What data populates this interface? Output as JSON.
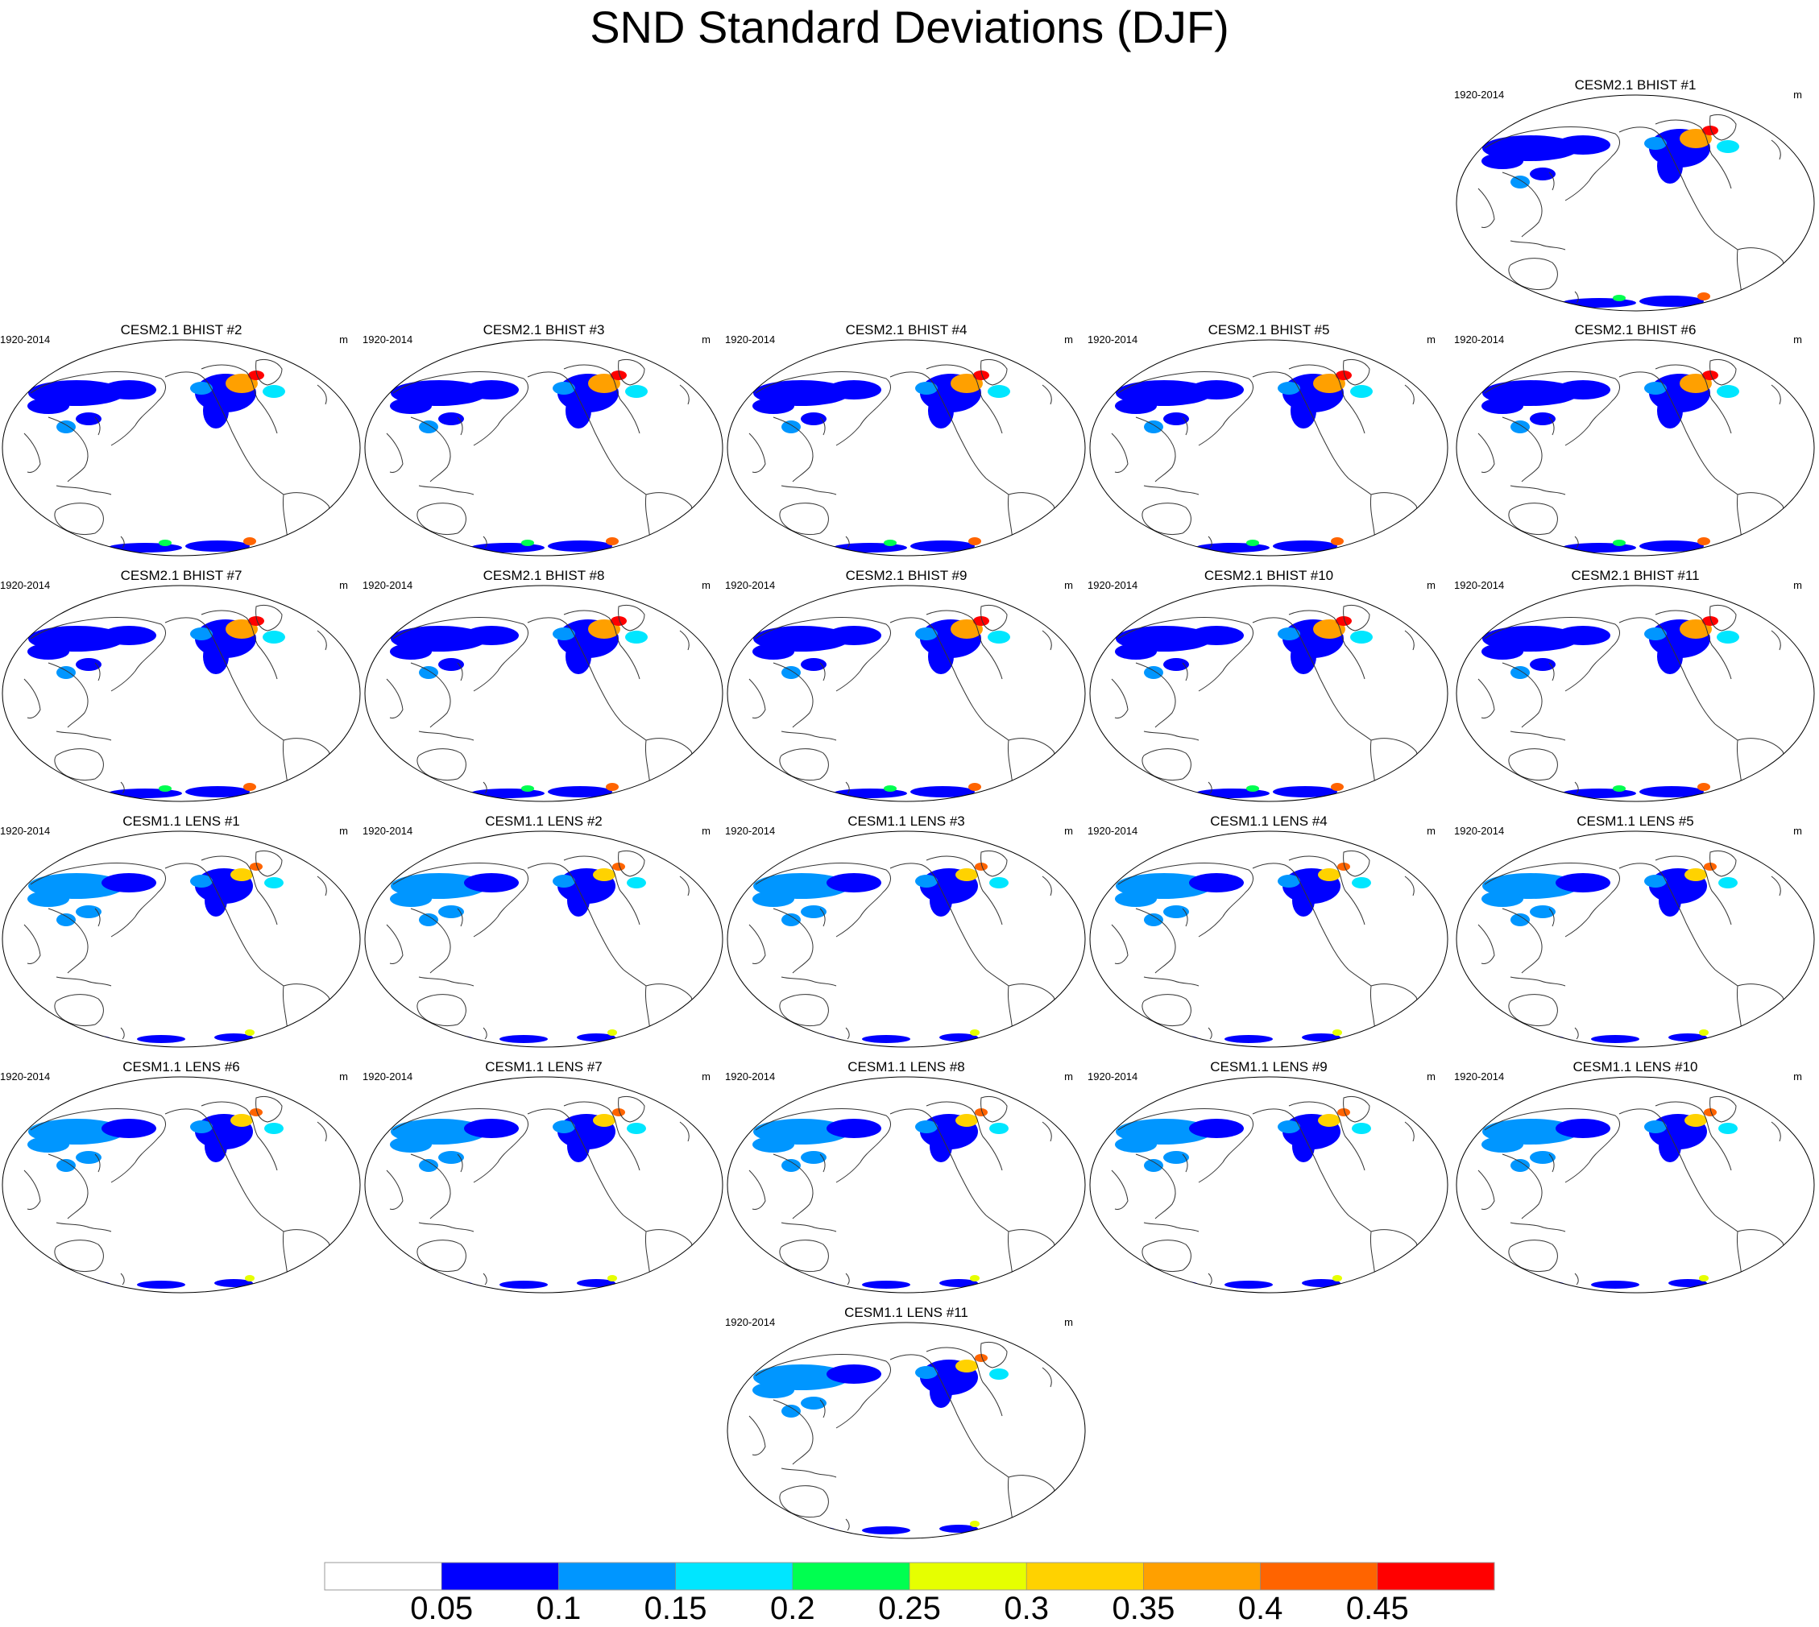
{
  "title": "SND Standard Deviations (DJF)",
  "panels": [
    {
      "title": "CESM2.1 BHIST #1",
      "period": "1920-2014",
      "units": "m",
      "model": "CESM2.1"
    },
    {
      "title": "CESM2.1 BHIST #2",
      "period": "1920-2014",
      "units": "m",
      "model": "CESM2.1"
    },
    {
      "title": "CESM2.1 BHIST #3",
      "period": "1920-2014",
      "units": "m",
      "model": "CESM2.1"
    },
    {
      "title": "CESM2.1 BHIST #4",
      "period": "1920-2014",
      "units": "m",
      "model": "CESM2.1"
    },
    {
      "title": "CESM2.1 BHIST #5",
      "period": "1920-2014",
      "units": "m",
      "model": "CESM2.1"
    },
    {
      "title": "CESM2.1 BHIST #6",
      "period": "1920-2014",
      "units": "m",
      "model": "CESM2.1"
    },
    {
      "title": "CESM2.1 BHIST #7",
      "period": "1920-2014",
      "units": "m",
      "model": "CESM2.1"
    },
    {
      "title": "CESM2.1 BHIST #8",
      "period": "1920-2014",
      "units": "m",
      "model": "CESM2.1"
    },
    {
      "title": "CESM2.1 BHIST #9",
      "period": "1920-2014",
      "units": "m",
      "model": "CESM2.1"
    },
    {
      "title": "CESM2.1 BHIST #10",
      "period": "1920-2014",
      "units": "m",
      "model": "CESM2.1"
    },
    {
      "title": "CESM2.1 BHIST #11",
      "period": "1920-2014",
      "units": "m",
      "model": "CESM2.1"
    },
    {
      "title": "CESM1.1 LENS #1",
      "period": "1920-2014",
      "units": "m",
      "model": "CESM1.1"
    },
    {
      "title": "CESM1.1 LENS #2",
      "period": "1920-2014",
      "units": "m",
      "model": "CESM1.1"
    },
    {
      "title": "CESM1.1 LENS #3",
      "period": "1920-2014",
      "units": "m",
      "model": "CESM1.1"
    },
    {
      "title": "CESM1.1 LENS #4",
      "period": "1920-2014",
      "units": "m",
      "model": "CESM1.1"
    },
    {
      "title": "CESM1.1 LENS #5",
      "period": "1920-2014",
      "units": "m",
      "model": "CESM1.1"
    },
    {
      "title": "CESM1.1 LENS #6",
      "period": "1920-2014",
      "units": "m",
      "model": "CESM1.1"
    },
    {
      "title": "CESM1.1 LENS #7",
      "period": "1920-2014",
      "units": "m",
      "model": "CESM1.1"
    },
    {
      "title": "CESM1.1 LENS #8",
      "period": "1920-2014",
      "units": "m",
      "model": "CESM1.1"
    },
    {
      "title": "CESM1.1 LENS #9",
      "period": "1920-2014",
      "units": "m",
      "model": "CESM1.1"
    },
    {
      "title": "CESM1.1 LENS #10",
      "period": "1920-2014",
      "units": "m",
      "model": "CESM1.1"
    },
    {
      "title": "CESM1.1 LENS #11",
      "period": "1920-2014",
      "units": "m",
      "model": "CESM1.1"
    }
  ],
  "colorbar": {
    "labels": [
      "0.05",
      "0.1",
      "0.15",
      "0.2",
      "0.25",
      "0.3",
      "0.35",
      "0.4",
      "0.45"
    ],
    "colors": [
      "#ffffff",
      "#0000ff",
      "#0096ff",
      "#00e6ff",
      "#00ff50",
      "#e6ff00",
      "#ffd200",
      "#ffa000",
      "#ff6400",
      "#ff0000"
    ]
  }
}
